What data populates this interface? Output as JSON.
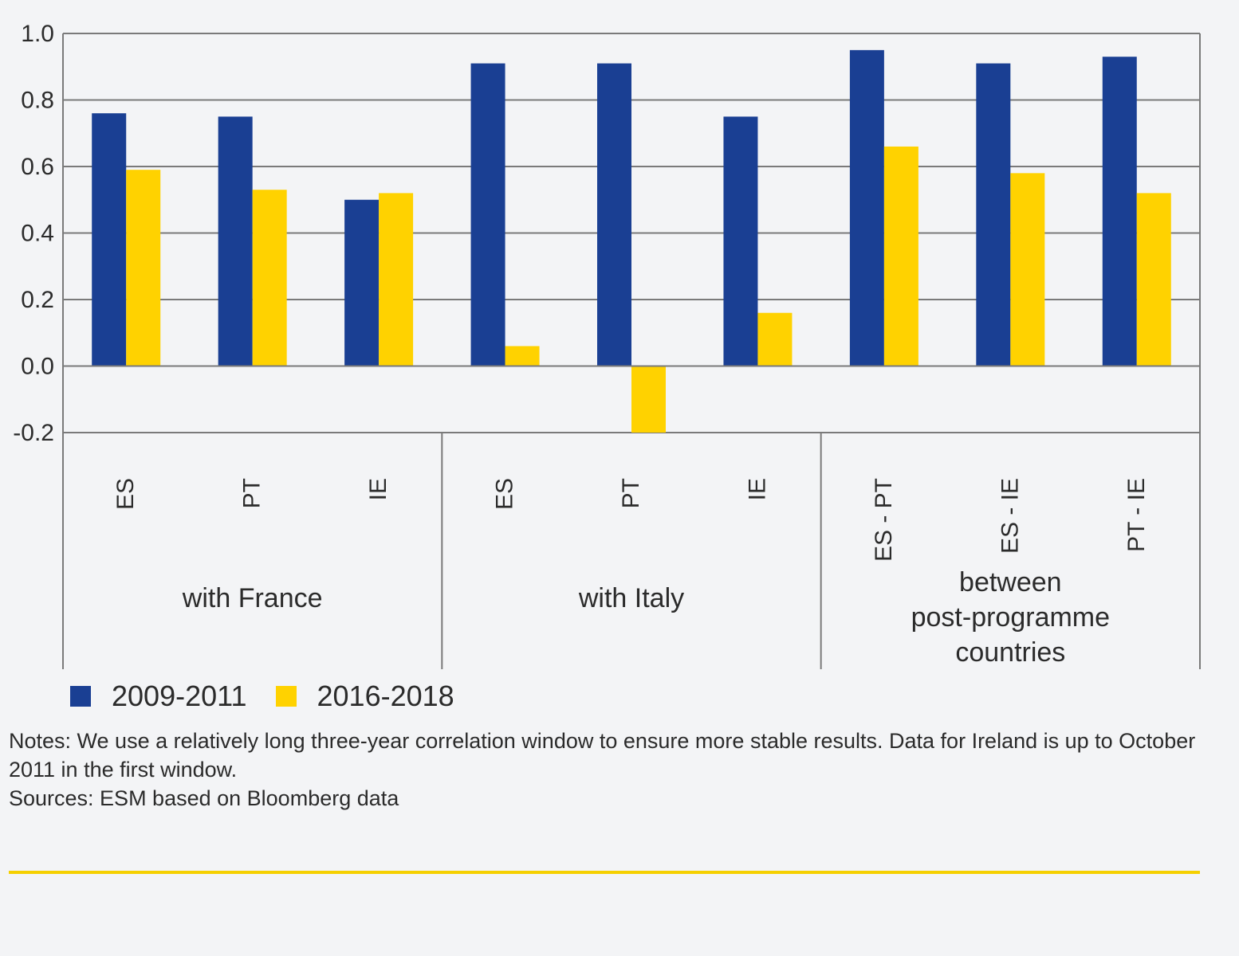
{
  "chart_data": {
    "type": "bar",
    "y_ticks": [
      "1.0",
      "0.8",
      "0.6",
      "0.4",
      "0.2",
      "0.0",
      "-0.2"
    ],
    "ylim": [
      -0.2,
      1.0
    ],
    "grid": true,
    "legend_position": "bottom-left",
    "groups": [
      {
        "label": "with France",
        "categories": [
          "ES",
          "PT",
          "IE"
        ]
      },
      {
        "label": "with Italy",
        "categories": [
          "ES",
          "PT",
          "IE"
        ]
      },
      {
        "label": "between\npost-programme\ncountries",
        "categories": [
          "ES - PT",
          "ES - IE",
          "PT - IE"
        ]
      }
    ],
    "categories": [
      "ES",
      "PT",
      "IE",
      "ES",
      "PT",
      "IE",
      "ES - PT",
      "ES - IE",
      "PT - IE"
    ],
    "series": [
      {
        "name": "2009-2011",
        "color": "#1a3f93",
        "values": [
          0.76,
          0.75,
          0.5,
          0.91,
          0.91,
          0.75,
          0.95,
          0.91,
          0.93
        ]
      },
      {
        "name": "2016-2018",
        "color": "#ffd200",
        "values": [
          0.59,
          0.53,
          0.52,
          0.06,
          -0.2,
          0.16,
          0.66,
          0.58,
          0.52
        ]
      }
    ]
  },
  "legend": {
    "items": [
      {
        "label": "2009-2011",
        "color": "#1a3f93"
      },
      {
        "label": "2016-2018",
        "color": "#ffd200"
      }
    ]
  },
  "notes": {
    "line1": "Notes: We use a relatively long three-year correlation window to ensure more stable results. Data for Ireland is up to October 2011 in the first window.",
    "line2": "Sources: ESM based on Bloomberg data"
  },
  "accent_color": "#f5d000"
}
